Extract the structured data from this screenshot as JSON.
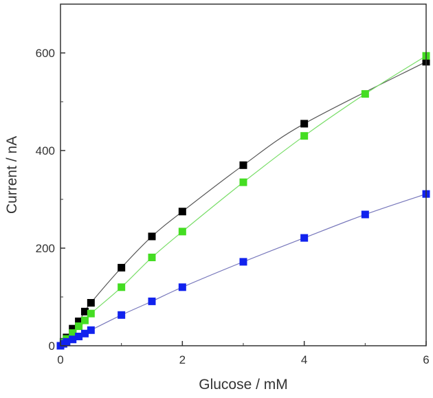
{
  "chart_data": {
    "type": "scatter",
    "title": "",
    "xlabel": "Glucose / mM",
    "ylabel": "Current / nA",
    "xlim": [
      0,
      6
    ],
    "ylim": [
      0,
      700
    ],
    "xticks": [
      0,
      2,
      4,
      6
    ],
    "yticks": [
      0,
      200,
      400,
      600
    ],
    "grid": false,
    "legend": "none",
    "marker": "square",
    "lines": "smooth fit through points",
    "series": [
      {
        "color": "#000000",
        "line_color": "#555555",
        "x": [
          0,
          0.05,
          0.1,
          0.2,
          0.3,
          0.4,
          0.5,
          1,
          1.5,
          2,
          3,
          4,
          6
        ],
        "y": [
          0,
          8,
          17,
          35,
          50,
          70,
          88,
          160,
          224,
          275,
          370,
          455,
          582
        ]
      },
      {
        "color": "#44dd22",
        "line_color": "#77dd66",
        "x": [
          0,
          0.05,
          0.1,
          0.2,
          0.3,
          0.4,
          0.5,
          1,
          1.5,
          2,
          3,
          4,
          5,
          6
        ],
        "y": [
          0,
          7,
          14,
          26,
          40,
          52,
          66,
          120,
          181,
          234,
          335,
          430,
          516,
          594
        ]
      },
      {
        "color": "#1122ee",
        "line_color": "#7777bb",
        "x": [
          0,
          0.05,
          0.1,
          0.2,
          0.3,
          0.4,
          0.5,
          1,
          1.5,
          2,
          3,
          4,
          5,
          6
        ],
        "y": [
          0,
          4,
          8,
          13,
          19,
          25,
          32,
          63,
          91,
          120,
          172,
          221,
          269,
          311
        ]
      }
    ]
  }
}
